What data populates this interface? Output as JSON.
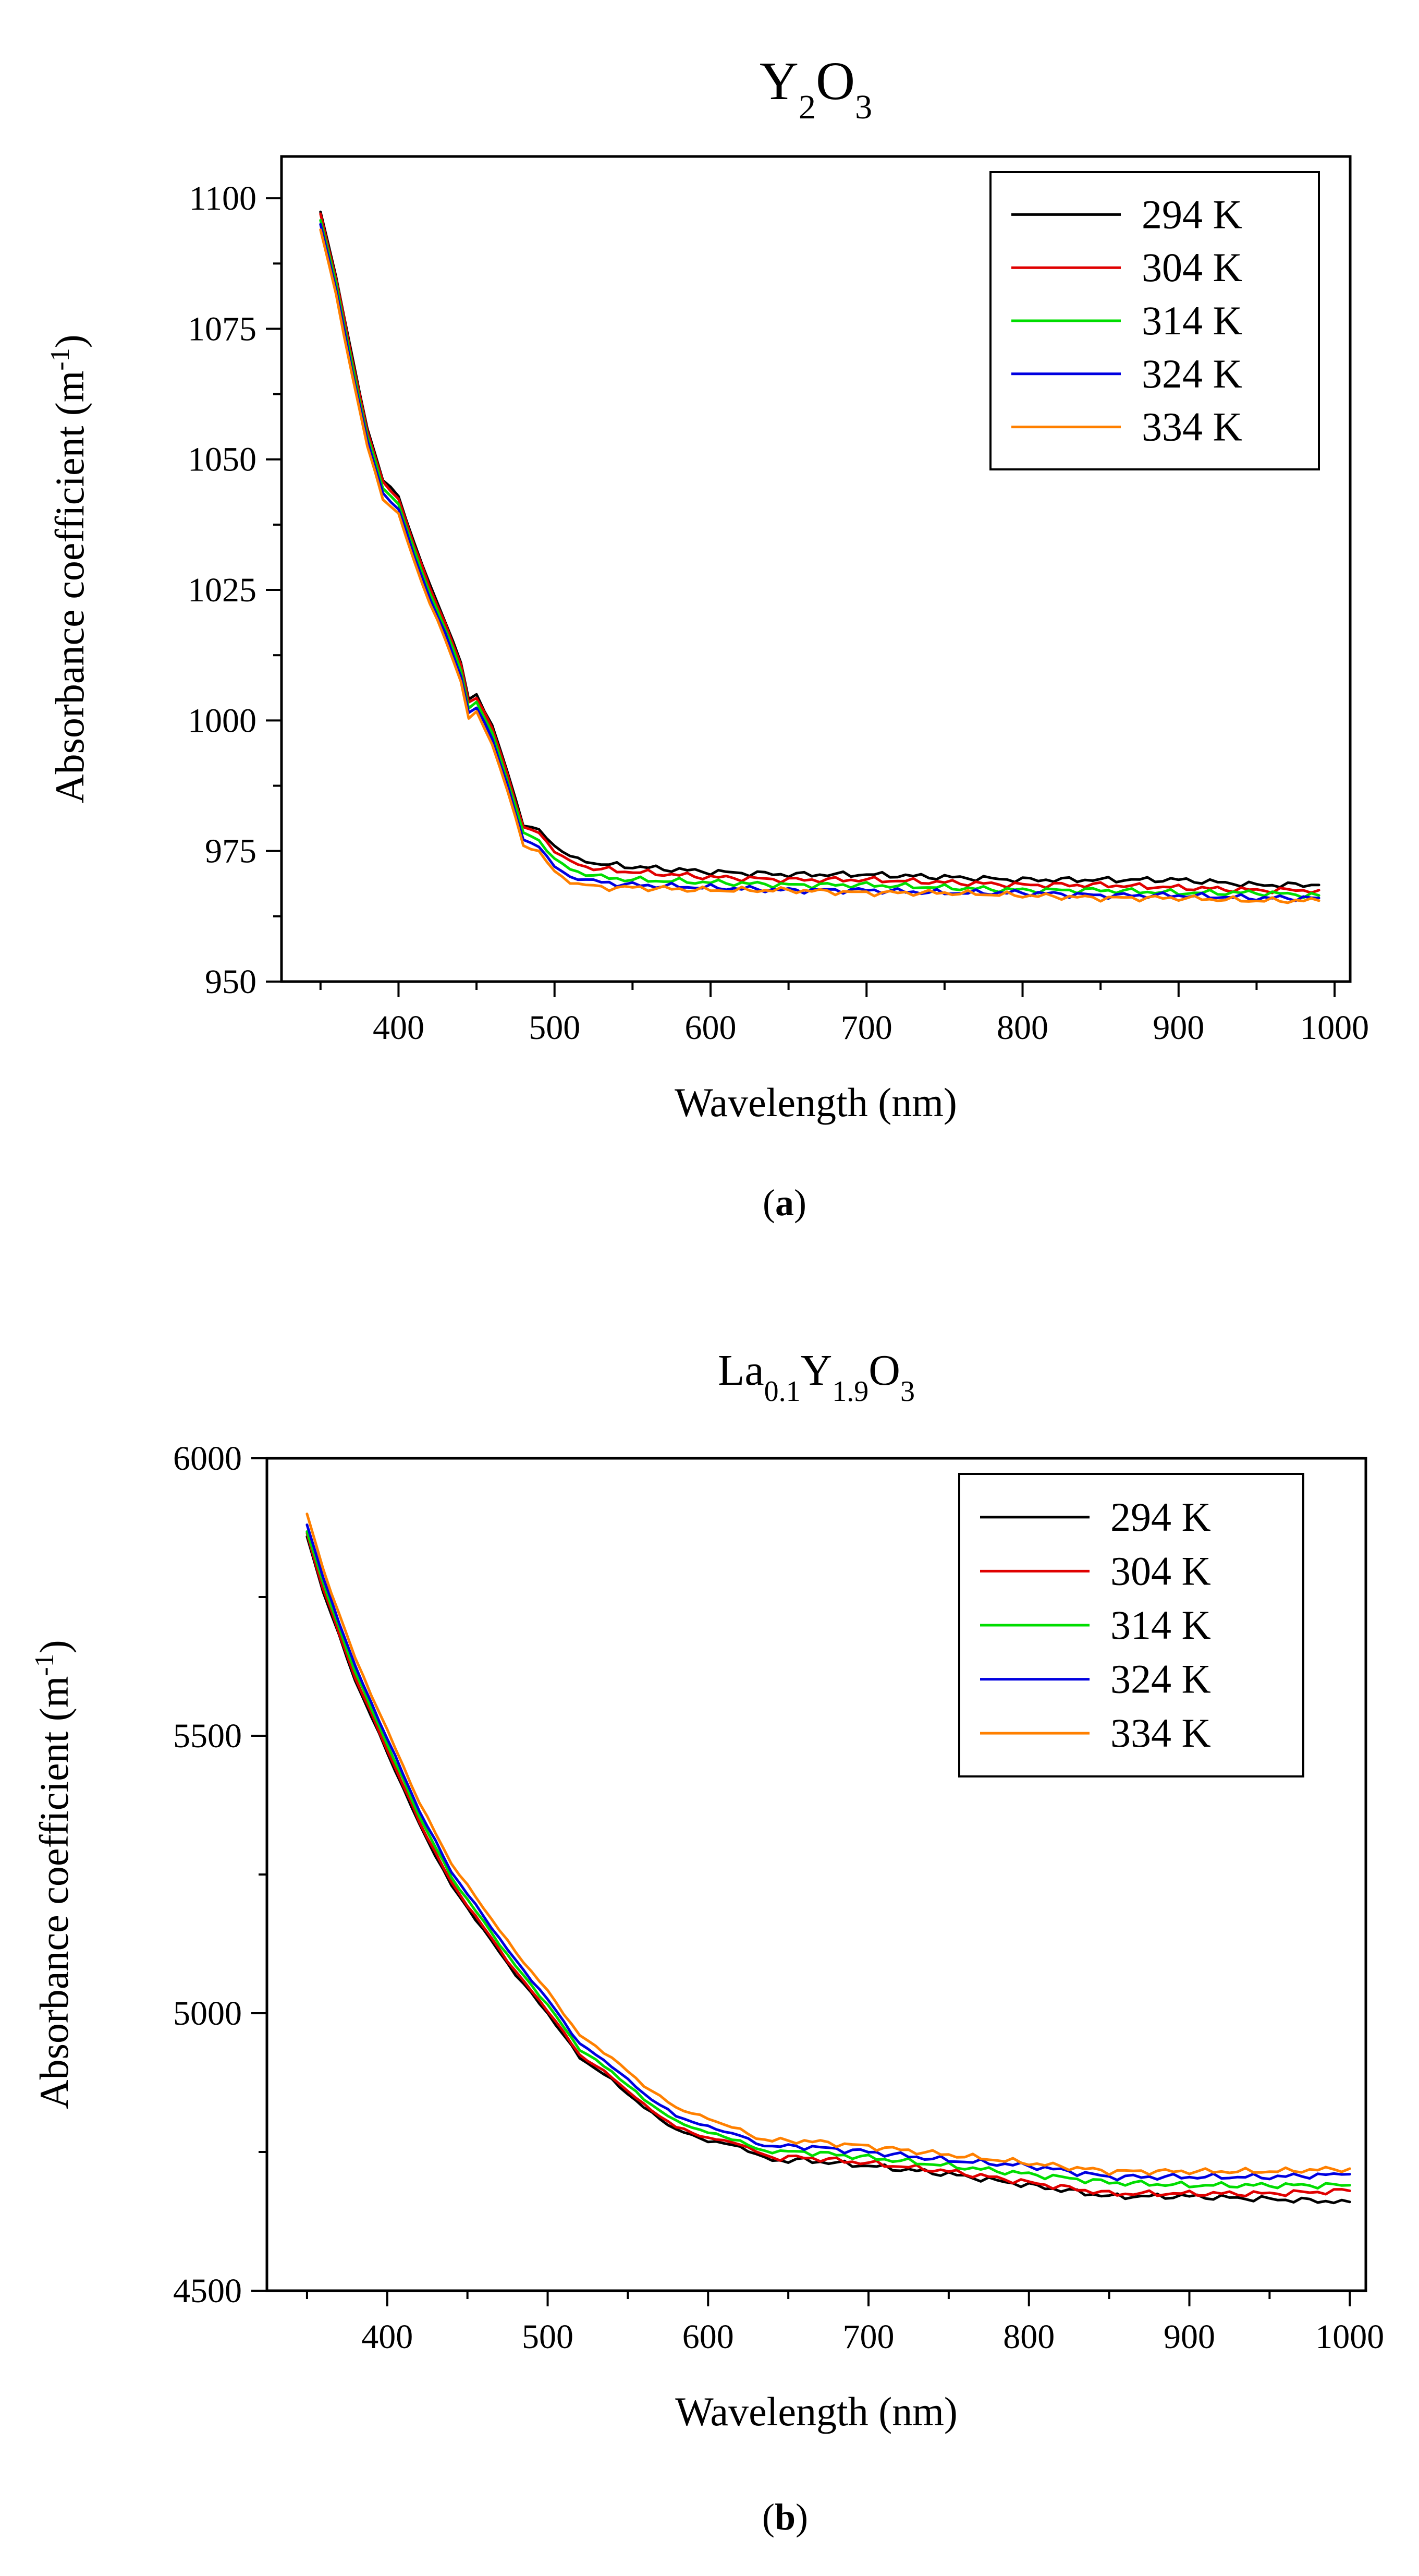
{
  "figure": {
    "panels": [
      {
        "label_open": "(",
        "label_letter": "a",
        "label_close": ")"
      },
      {
        "label_open": "(",
        "label_letter": "b",
        "label_close": ")"
      }
    ]
  },
  "chart_data": [
    {
      "type": "line",
      "title_parts": [
        {
          "text": "Y",
          "sub": false
        },
        {
          "text": "2",
          "sub": true
        },
        {
          "text": "O",
          "sub": false
        },
        {
          "text": "3",
          "sub": true
        }
      ],
      "xlabel": "Wavelength (nm)",
      "ylabel_main": "Absorbance coefficient (m",
      "ylabel_sup": "-1",
      "ylabel_close": ")",
      "xlim": [
        325,
        1010
      ],
      "ylim": [
        950,
        1108
      ],
      "xticks": [
        400,
        500,
        600,
        700,
        800,
        900,
        1000
      ],
      "yticks": [
        950,
        975,
        1000,
        1025,
        1050,
        1075,
        1100
      ],
      "xtick_labels": [
        "400",
        "500",
        "600",
        "700",
        "800",
        "900",
        "1000"
      ],
      "ytick_labels": [
        "950",
        "975",
        "1000",
        "1025",
        "1050",
        "1075",
        "1100"
      ],
      "legend_position": "top-right",
      "x": [
        350,
        360,
        370,
        380,
        390,
        400,
        410,
        420,
        430,
        440,
        445,
        450,
        460,
        470,
        480,
        490,
        500,
        510,
        520,
        530,
        550,
        600,
        650,
        700,
        750,
        800,
        850,
        900,
        950,
        990
      ],
      "series": [
        {
          "name": "294 K",
          "color": "#000000",
          "values": [
            1097.5,
            1085,
            1070,
            1056,
            1046,
            1043,
            1034,
            1026,
            1019,
            1011,
            1004,
            1005,
            999,
            990,
            980,
            979,
            976,
            974,
            973,
            972.5,
            972,
            971,
            970.5,
            970.5,
            970,
            969.5,
            969.5,
            969.5,
            968.5,
            968.5
          ]
        },
        {
          "name": "304 K",
          "color": "#e00000",
          "values": [
            1097,
            1084.5,
            1069.5,
            1055.5,
            1045.5,
            1042.5,
            1033.5,
            1025.5,
            1018.5,
            1010.5,
            1003.5,
            1004.5,
            998.5,
            989.5,
            979.5,
            978.5,
            975,
            973,
            972,
            971.5,
            971,
            970,
            969.5,
            969.5,
            969,
            968.5,
            968.5,
            968,
            967.5,
            967.5
          ]
        },
        {
          "name": "314 K",
          "color": "#00dd00",
          "values": [
            1096,
            1083.5,
            1068.5,
            1054.5,
            1044.5,
            1041.5,
            1032.5,
            1024.5,
            1017.5,
            1009.5,
            1002.5,
            1003.5,
            997.5,
            988.5,
            978.5,
            977,
            973.5,
            971.5,
            970.5,
            970,
            969.5,
            969,
            968.5,
            968.5,
            968,
            967.5,
            967.5,
            967,
            967,
            966.5
          ]
        },
        {
          "name": "324 K",
          "color": "#0000e0",
          "values": [
            1095,
            1082.5,
            1067.5,
            1053.5,
            1043.5,
            1040.5,
            1031.5,
            1023.5,
            1016.5,
            1008.5,
            1001.5,
            1002.5,
            996.5,
            987.5,
            977,
            976,
            972,
            970,
            969.5,
            969,
            968.5,
            968,
            967.5,
            967.5,
            967,
            967,
            966.5,
            966.5,
            966,
            966
          ]
        },
        {
          "name": "334 K",
          "color": "#ff8000",
          "values": [
            1094,
            1081.5,
            1066.5,
            1052.5,
            1042.5,
            1039.5,
            1030.5,
            1022.5,
            1015.5,
            1007.5,
            1000.5,
            1001.5,
            995.5,
            986.5,
            976,
            975,
            971,
            969,
            968.5,
            968,
            968,
            967.5,
            967.5,
            967,
            967,
            966.5,
            966,
            966,
            965.5,
            965.5
          ]
        }
      ]
    },
    {
      "type": "line",
      "title_parts": [
        {
          "text": "La",
          "sub": false
        },
        {
          "text": "0.1",
          "sub": true
        },
        {
          "text": "Y",
          "sub": false
        },
        {
          "text": "1.9",
          "sub": true
        },
        {
          "text": "O",
          "sub": false
        },
        {
          "text": "3",
          "sub": true
        }
      ],
      "xlabel": "Wavelength (nm)",
      "ylabel_main": "Absorbance coefficient (m",
      "ylabel_sup": "-1",
      "ylabel_close": ")",
      "xlim": [
        325,
        1010
      ],
      "ylim": [
        4500,
        6000
      ],
      "xticks": [
        400,
        500,
        600,
        700,
        800,
        900,
        1000
      ],
      "yticks": [
        4500,
        5000,
        5500,
        6000
      ],
      "xtick_labels": [
        "400",
        "500",
        "600",
        "700",
        "800",
        "900",
        "1000"
      ],
      "ytick_labels": [
        "4500",
        "5000",
        "5500",
        "6000"
      ],
      "legend_position": "top-right",
      "x": [
        350,
        360,
        380,
        400,
        420,
        440,
        460,
        480,
        500,
        520,
        540,
        560,
        580,
        600,
        620,
        630,
        640,
        660,
        680,
        700,
        750,
        800,
        850,
        900,
        950,
        1000
      ],
      "series": [
        {
          "name": "294 K",
          "color": "#000000",
          "values": [
            5860,
            5760,
            5600,
            5470,
            5340,
            5230,
            5150,
            5070,
            5000,
            4920,
            4880,
            4830,
            4790,
            4770,
            4760,
            4745,
            4735,
            4735,
            4730,
            4725,
            4710,
            4690,
            4670,
            4670,
            4665,
            4660
          ]
        },
        {
          "name": "304 K",
          "color": "#e00000",
          "values": [
            5865,
            5765,
            5605,
            5475,
            5345,
            5235,
            5155,
            5075,
            5005,
            4925,
            4885,
            4835,
            4795,
            4775,
            4765,
            4750,
            4740,
            4740,
            4735,
            4730,
            4715,
            4695,
            4675,
            4675,
            4675,
            4680
          ]
        },
        {
          "name": "314 K",
          "color": "#00dd00",
          "values": [
            5870,
            5775,
            5615,
            5485,
            5355,
            5245,
            5165,
            5085,
            5015,
            4935,
            4895,
            4845,
            4805,
            4785,
            4770,
            4755,
            4750,
            4750,
            4745,
            4740,
            4725,
            4710,
            4695,
            4690,
            4690,
            4690
          ]
        },
        {
          "name": "324 K",
          "color": "#0000e0",
          "values": [
            5880,
            5785,
            5625,
            5495,
            5365,
            5255,
            5175,
            5095,
            5025,
            4945,
            4905,
            4855,
            4815,
            4795,
            4780,
            4765,
            4760,
            4760,
            4755,
            4750,
            4735,
            4725,
            4705,
            4705,
            4705,
            4710
          ]
        },
        {
          "name": "334 K",
          "color": "#ff8000",
          "values": [
            5900,
            5800,
            5640,
            5510,
            5380,
            5270,
            5190,
            5110,
            5040,
            4960,
            4920,
            4870,
            4830,
            4810,
            4790,
            4775,
            4770,
            4770,
            4765,
            4760,
            4745,
            4730,
            4715,
            4715,
            4715,
            4720
          ]
        }
      ]
    }
  ]
}
